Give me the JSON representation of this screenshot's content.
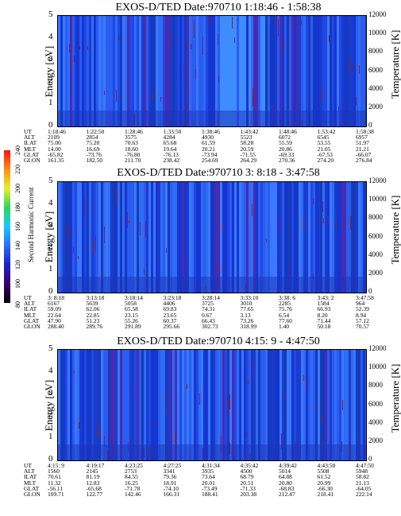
{
  "colorbar": {
    "label": "Second Harmonic Current",
    "ticks": [
      "80",
      "100",
      "120",
      "140",
      "160",
      "180",
      "200",
      "220",
      "240"
    ],
    "colors": [
      "#000000",
      "#3a006a",
      "#1a22c8",
      "#2a6cff",
      "#19c8ff",
      "#2ad85a",
      "#e8f028",
      "#ff8c10",
      "#ff1010"
    ]
  },
  "chart_data": [
    {
      "type": "heatmap",
      "title": "EXOS-D/TED   Date:970710  1:18:46 - 1:58:38",
      "ylabel": "Energy [eV]",
      "y2label": "Temperature [K]",
      "ylim": [
        0,
        5
      ],
      "y2lim": [
        0,
        12000
      ],
      "yticks": [
        "0",
        "1",
        "2",
        "3",
        "4",
        "5"
      ],
      "y2ticks": [
        "0",
        "2000",
        "4000",
        "6000",
        "8000",
        "10000",
        "12000"
      ],
      "rows": [
        {
          "label": "UT",
          "values": [
            "1:18:46",
            "1:22:50",
            "1:28:46",
            "1:33:50",
            "1:38:46",
            "1:43:42",
            "1:48:46",
            "1:53:42",
            "1:58:38"
          ]
        },
        {
          "label": "ALT",
          "values": [
            "2109",
            "2854",
            "3575",
            "4284",
            "4930",
            "5523",
            "6072",
            "6545",
            "6957"
          ]
        },
        {
          "label": "ILAT",
          "values": [
            "75.00",
            "75.20",
            "70.63",
            "65.68",
            "61.59",
            "58.28",
            "55.59",
            "53.55",
            "51.97"
          ]
        },
        {
          "label": "MLT",
          "values": [
            "14.00",
            "16.69",
            "18.60",
            "19.64",
            "20.21",
            "20.59",
            "20.86",
            "21.05",
            "21.21"
          ]
        },
        {
          "label": "GLAT",
          "values": [
            "-65.82",
            "-73.76",
            "-76.80",
            "-76.13",
            "-73.94",
            "-71.55",
            "-69.33",
            "-67.53",
            "-66.07"
          ]
        },
        {
          "label": "GLON",
          "values": [
            "161.35",
            "182.50",
            "211.70",
            "238.42",
            "254.69",
            "264.29",
            "270.36",
            "274.20",
            "276.84"
          ]
        }
      ]
    },
    {
      "type": "heatmap",
      "title": "EXOS-D/TED   Date:970710  3: 8:18 - 3:47:58",
      "ylabel": "Energy [eV]",
      "y2label": "Temperature [K]",
      "ylim": [
        0,
        5
      ],
      "y2lim": [
        0,
        12000
      ],
      "yticks": [
        "0",
        "1",
        "2",
        "3",
        "4",
        "5"
      ],
      "y2ticks": [
        "0",
        "2000",
        "4000",
        "6000",
        "8000",
        "10000",
        "12000"
      ],
      "rows": [
        {
          "label": "UT",
          "values": [
            "3: 8:18",
            "3:13:18",
            "3:18:14",
            "3:23:18",
            "3:28:14",
            "3:33:10",
            "3:38: 6",
            "3:43: 2",
            "3:47:58"
          ]
        },
        {
          "label": "ALT",
          "values": [
            "6167",
            "5639",
            "5058",
            "4406",
            "3725",
            "3010",
            "2285",
            "1584",
            "964"
          ]
        },
        {
          "label": "ILAT",
          "values": [
            "59.09",
            "62.06",
            "65.58",
            "69.83",
            "74.31",
            "77.65",
            "75.76",
            "66.93",
            "52.39"
          ]
        },
        {
          "label": "MLT",
          "values": [
            "22.64",
            "22.85",
            "23.15",
            "23.65",
            "0.67",
            "3.13",
            "6.54",
            "8.20",
            "8.94"
          ]
        },
        {
          "label": "GLAT",
          "values": [
            "47.90",
            "51.23",
            "55.26",
            "60.37",
            "66.43",
            "73.26",
            "77.60",
            "71.44",
            "57.12"
          ]
        },
        {
          "label": "GLON",
          "values": [
            "288.40",
            "289.76",
            "291.89",
            "295.66",
            "302.73",
            "318.99",
            "1.40",
            "50.18",
            "70.57"
          ]
        }
      ]
    },
    {
      "type": "heatmap",
      "title": "EXOS-D/TED   Date:970710  4:15: 9 - 4:47:50",
      "ylabel": "Energy [eV]",
      "y2label": "Temperature [K]",
      "ylim": [
        0,
        5
      ],
      "y2lim": [
        0,
        12000
      ],
      "yticks": [
        "0",
        "1",
        "2",
        "3",
        "4",
        "5"
      ],
      "y2ticks": [
        "0",
        "2000",
        "4000",
        "6000",
        "8000",
        "10000",
        "12000"
      ],
      "rows": [
        {
          "label": "UT",
          "values": [
            "4:15: 9",
            "4:19:17",
            "4:23:25",
            "4:27:25",
            "4:31:34",
            "4:35:42",
            "4:39:42",
            "4:43:50",
            "4:47:50"
          ]
        },
        {
          "label": "ALT",
          "values": [
            "1560",
            "2145",
            "2753",
            "3341",
            "3935",
            "4500",
            "5014",
            "5508",
            "5948"
          ]
        },
        {
          "label": "ILAT",
          "values": [
            "70.61",
            "81.19",
            "84.55",
            "79.36",
            "73.64",
            "68.79",
            "64.88",
            "61.52",
            "58.82"
          ]
        },
        {
          "label": "MLT",
          "values": [
            "11.32",
            "12.83",
            "16.25",
            "18.91",
            "20.01",
            "20.51",
            "20.80",
            "20.99",
            "21.13"
          ]
        },
        {
          "label": "GLAT",
          "values": [
            "-56.11",
            "-65.68",
            "-71.78",
            "-74.10",
            "-73.49",
            "-71.33",
            "-68.83",
            "-66.30",
            "-64.05"
          ]
        },
        {
          "label": "GLON",
          "values": [
            "109.71",
            "122.77",
            "142.46",
            "166.31",
            "188.41",
            "203.38",
            "212.47",
            "218.41",
            "222.14"
          ]
        }
      ]
    }
  ]
}
